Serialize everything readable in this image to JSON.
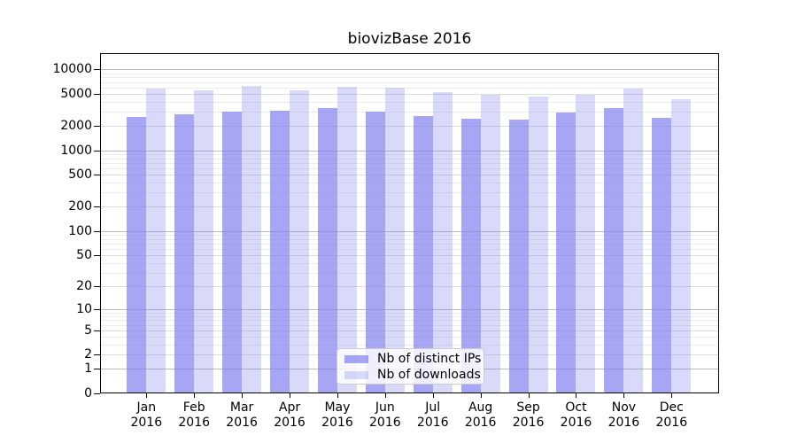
{
  "chart_data": {
    "type": "bar",
    "title": "biovizBase 2016",
    "categories": [
      "Jan",
      "Feb",
      "Mar",
      "Apr",
      "May",
      "Jun",
      "Jul",
      "Aug",
      "Sep",
      "Oct",
      "Nov",
      "Dec"
    ],
    "x_tick_year": "2016",
    "y_axis": {
      "scale": "log(1+y), includes 0",
      "tick_labels": [
        "0",
        "1",
        "2",
        "5",
        "10",
        "20",
        "50",
        "100",
        "200",
        "500",
        "1000",
        "2000",
        "5000",
        "10000"
      ],
      "ylim_top_approx": 16000,
      "grid": "on"
    },
    "series": [
      {
        "name": "Nb of distinct IPs",
        "color": "rgba(128,128,240,0.70)",
        "values": [
          2500,
          2750,
          2950,
          3050,
          3250,
          2950,
          2600,
          2400,
          2350,
          2900,
          3250,
          2450
        ]
      },
      {
        "name": "Nb of downloads",
        "color": "rgba(128,128,240,0.30)",
        "values": [
          5650,
          5350,
          6050,
          5450,
          5950,
          5850,
          5150,
          4750,
          4500,
          4800,
          5700,
          4200
        ]
      }
    ],
    "legend_position": "bottom-center inside plot"
  },
  "colors": {
    "background": "#ffffff",
    "spine": "#000000",
    "grid_decade": "#bbbbbb",
    "grid_labeled": "#dcdcdc",
    "grid_minor": "#ececec"
  }
}
